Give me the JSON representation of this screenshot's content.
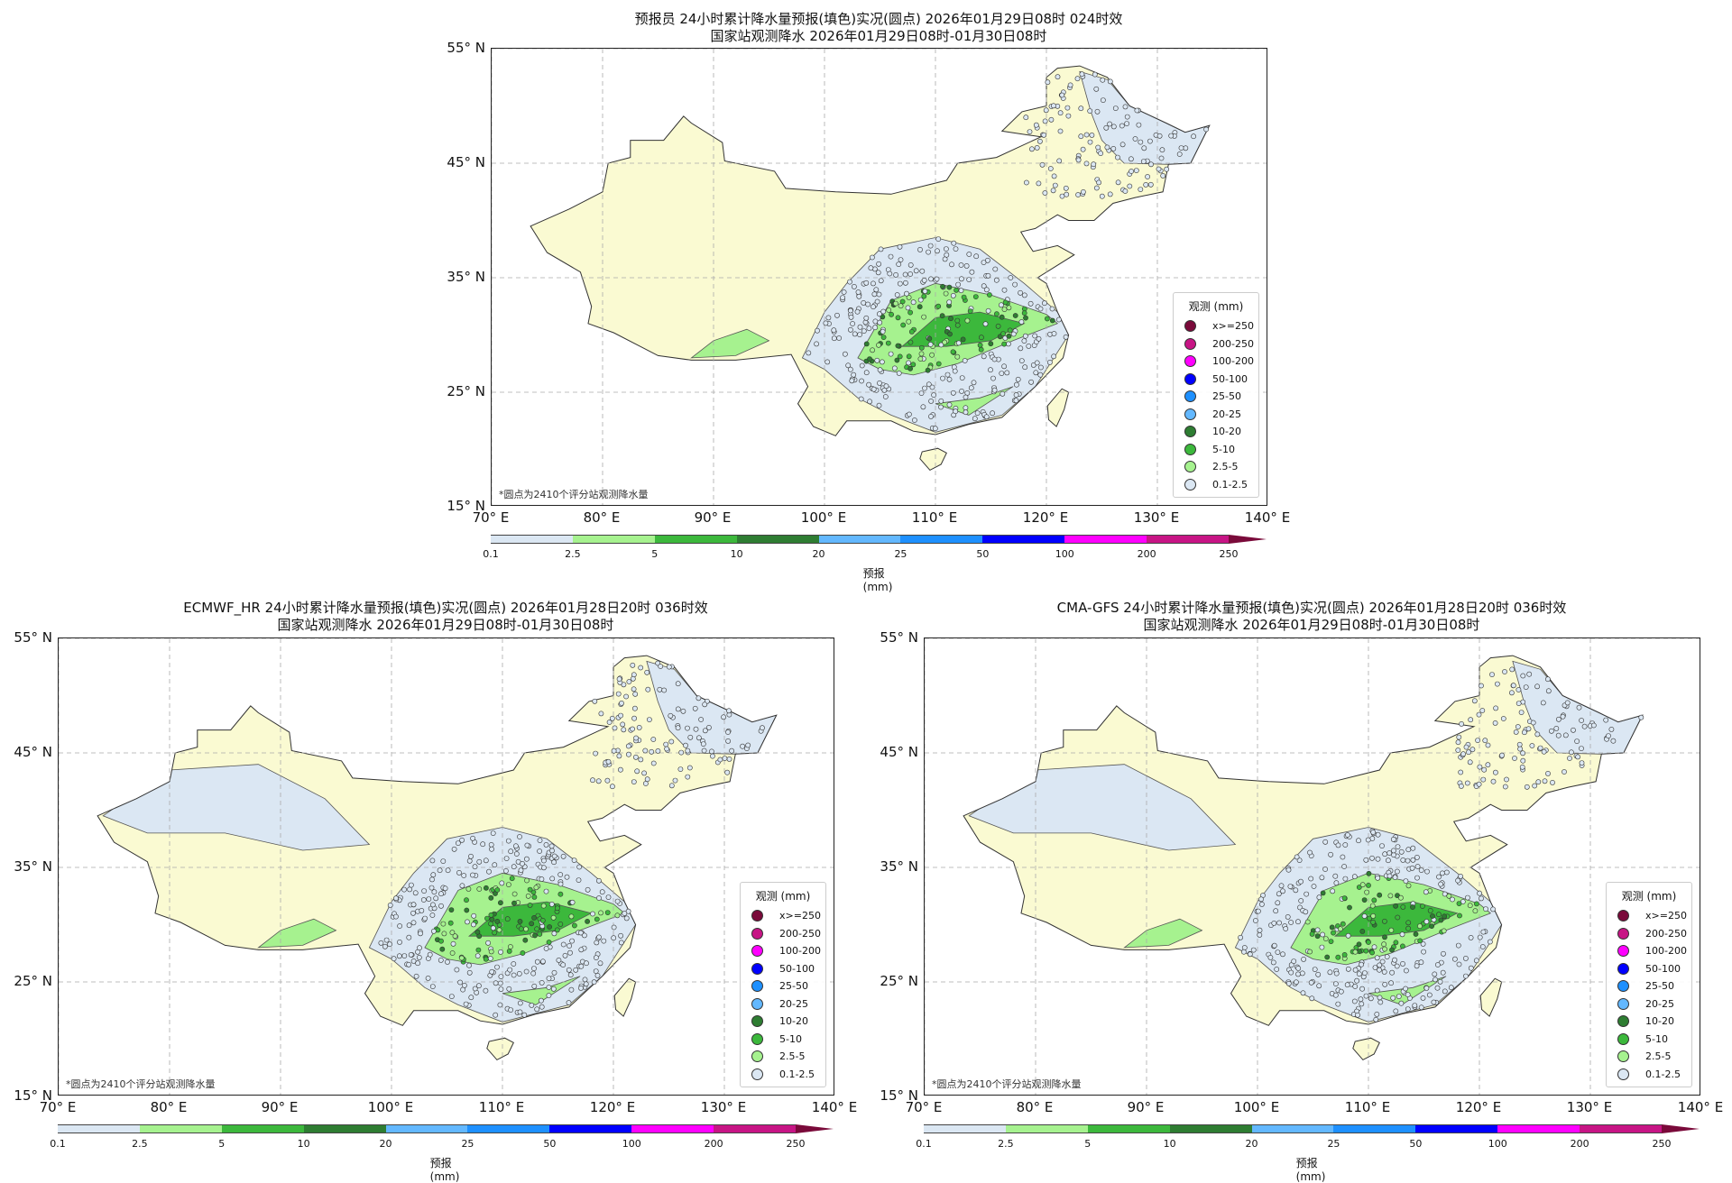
{
  "panels": [
    {
      "title_line1": "预报员 24小时累计降水量预报(填色)实况(圆点) 2026年01月29日08时 024时效",
      "title_line2": "国家站观测降水 2026年01月29日08时-01月30日08时",
      "footnote": "*圆点为2410个评分站观测降水量"
    },
    {
      "title_line1": "ECMWF_HR 24小时累计降水量预报(填色)实况(圆点) 2026年01月28日20时 036时效",
      "title_line2": "国家站观测降水 2026年01月29日08时-01月30日08时",
      "footnote": "*圆点为2410个评分站观测降水量"
    },
    {
      "title_line1": "CMA-GFS 24小时累计降水量预报(填色)实况(圆点) 2026年01月28日20时 036时效",
      "title_line2": "国家站观测降水 2026年01月29日08时-01月30日08时",
      "footnote": "*圆点为2410个评分站观测降水量"
    }
  ],
  "axes": {
    "lat_ticks": [
      "55° N",
      "45° N",
      "35° N",
      "25° N",
      "15° N"
    ],
    "lat_values": [
      55,
      45,
      35,
      25,
      15
    ],
    "lon_ticks": [
      "70° E",
      "80° E",
      "90° E",
      "100° E",
      "110° E",
      "120° E",
      "130° E",
      "140° E"
    ],
    "lon_values": [
      70,
      80,
      90,
      100,
      110,
      120,
      130,
      140
    ],
    "lon_range": [
      70,
      140
    ],
    "lat_range": [
      15,
      55
    ]
  },
  "legend": {
    "title": "观测 (mm)",
    "items": [
      {
        "label": "x>=250",
        "color": "#7a0a3a"
      },
      {
        "label": "200-250",
        "color": "#c71585"
      },
      {
        "label": "100-200",
        "color": "#ff00ff"
      },
      {
        "label": "50-100",
        "color": "#0000ff"
      },
      {
        "label": "25-50",
        "color": "#1e90ff"
      },
      {
        "label": "20-25",
        "color": "#63b8ff"
      },
      {
        "label": "10-20",
        "color": "#2e7d32"
      },
      {
        "label": "5-10",
        "color": "#3cb83c"
      },
      {
        "label": "2.5-5",
        "color": "#a6f28f"
      },
      {
        "label": "0.1-2.5",
        "color": "#dbe7f3"
      }
    ]
  },
  "colorbar": {
    "label": "预报(mm)",
    "ticks": [
      "0.1",
      "2.5",
      "5",
      "10",
      "20",
      "25",
      "50",
      "100",
      "200",
      "250"
    ],
    "colors": [
      "#dbe7f3",
      "#a6f28f",
      "#3cb83c",
      "#2e7d32",
      "#63b8ff",
      "#1e90ff",
      "#0000ff",
      "#ff00ff",
      "#c71585"
    ],
    "extend_color": "#7a0a3a"
  },
  "chart_data": {
    "type": "heatmap",
    "description_fields": "precipitation forecast fill + station observation dots",
    "xlim": [
      70,
      140
    ],
    "ylim": [
      15,
      55
    ],
    "levels": [
      0.1,
      2.5,
      5,
      10,
      20,
      25,
      50,
      100,
      200,
      250
    ],
    "station_count": 2410
  }
}
